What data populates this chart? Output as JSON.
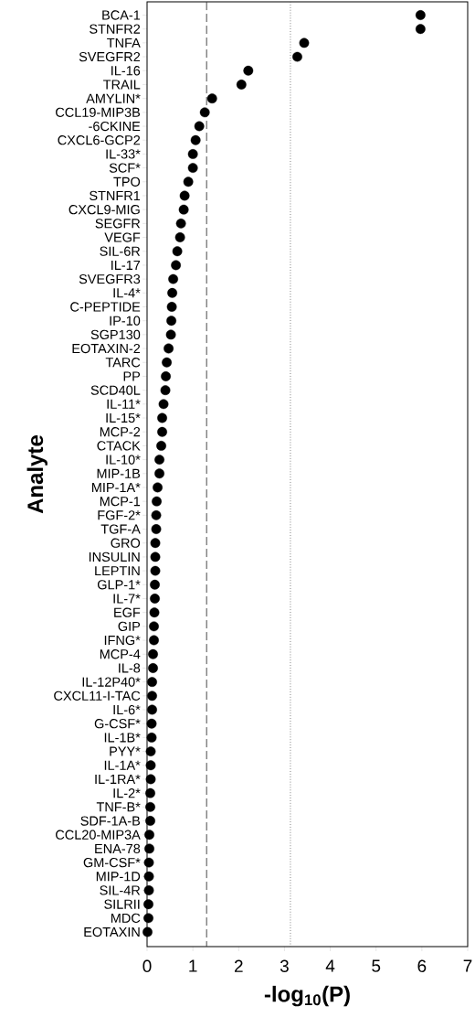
{
  "chart_data": {
    "type": "scatter",
    "orientation": "horizontal",
    "xlabel": "-log$_{10}$(P)",
    "ylabel": "Analyte",
    "categories": [
      "BCA-1",
      "STNFR2",
      "TNFA",
      "SVEGFR2",
      "IL-16",
      "TRAIL",
      "AMYLIN*",
      "CCL19-MIP3B",
      "-6CKINE",
      "CXCL6-GCP2",
      "IL-33*",
      "SCF*",
      "TPO",
      "STNFR1",
      "CXCL9-MIG",
      "SEGFR",
      "VEGF",
      "SIL-6R",
      "IL-17",
      "SVEGFR3",
      "IL-4*",
      "C-PEPTIDE",
      "IP-10",
      "SGP130",
      "EOTAXIN-2",
      "TARC",
      "PP",
      "SCD40L",
      "IL-11*",
      "IL-15*",
      "MCP-2",
      "CTACK",
      "IL-10*",
      "MIP-1B",
      "MIP-1A*",
      "MCP-1",
      "FGF-2*",
      "TGF-A",
      "GRO",
      "INSULIN",
      "LEPTIN",
      "GLP-1*",
      "IL-7*",
      "EGF",
      "GIP",
      "IFNG*",
      "MCP-4",
      "IL-8",
      "IL-12P40*",
      "CXCL11-I-TAC",
      "IL-6*",
      "G-CSF*",
      "IL-1B*",
      "PYY*",
      "IL-1A*",
      "IL-1RA*",
      "IL-2*",
      "TNF-B*",
      "SDF-1A-B",
      "CCL20-MIP3A",
      "ENA-78",
      "GM-CSF*",
      "MIP-1D",
      "SIL-4R",
      "SILRII",
      "MDC",
      "EOTAXIN"
    ],
    "values": [
      5.97,
      5.97,
      3.43,
      3.28,
      2.21,
      2.06,
      1.42,
      1.26,
      1.14,
      1.06,
      1.0,
      1.0,
      0.9,
      0.82,
      0.8,
      0.74,
      0.72,
      0.66,
      0.63,
      0.57,
      0.55,
      0.54,
      0.53,
      0.52,
      0.47,
      0.43,
      0.41,
      0.4,
      0.36,
      0.33,
      0.33,
      0.31,
      0.27,
      0.27,
      0.23,
      0.21,
      0.2,
      0.2,
      0.18,
      0.18,
      0.18,
      0.17,
      0.17,
      0.16,
      0.15,
      0.15,
      0.13,
      0.13,
      0.11,
      0.11,
      0.11,
      0.1,
      0.1,
      0.08,
      0.08,
      0.08,
      0.07,
      0.07,
      0.07,
      0.05,
      0.05,
      0.04,
      0.04,
      0.04,
      0.03,
      0.03,
      0.01
    ],
    "color": "#000000",
    "marker": "circle",
    "xlim": [
      0,
      7
    ],
    "xticks": [
      0,
      1,
      2,
      3,
      4,
      5,
      6,
      7
    ],
    "ref_lines": [
      {
        "axis": "x",
        "value": 1.3,
        "line_style": "dashed",
        "color": "#333333"
      },
      {
        "axis": "x",
        "value": 3.13,
        "line_style": "dotted",
        "color": "#666666"
      }
    ],
    "grid": false
  }
}
